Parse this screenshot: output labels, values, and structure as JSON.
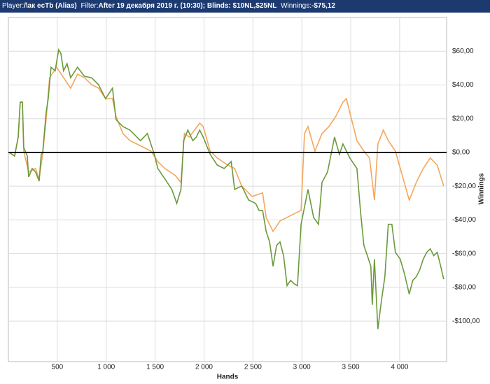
{
  "header": {
    "player_label": "Player:",
    "player": "/\\ак ecTb (Alias)",
    "filter_label": "Filter:",
    "filter": "After 19 декабря 2019 г. (10:30); Blinds: $10NL,$25NL",
    "winnings_label": "Winnings:",
    "winnings": "-$75,12"
  },
  "chart_data": {
    "type": "line",
    "xlabel": "Hands",
    "ylabel": "Winnings",
    "grid": true,
    "xlim": [
      0,
      4480
    ],
    "ylim": [
      -124,
      80
    ],
    "xticks": [
      500,
      {
        "value": 1000,
        "label": "1 000"
      },
      {
        "value": 1500,
        "label": "1 500"
      },
      {
        "value": 2000,
        "label": "2 000"
      },
      {
        "value": 2500,
        "label": "2 500"
      },
      {
        "value": 3000,
        "label": "3 000"
      },
      {
        "value": 3500,
        "label": "3 500"
      },
      {
        "value": 4000,
        "label": "4 000"
      }
    ],
    "yticks": [
      {
        "value": 60,
        "label": "$60,00"
      },
      {
        "value": 40,
        "label": "$40,00"
      },
      {
        "value": 20,
        "label": "$20,00"
      },
      {
        "value": 0,
        "label": "$0,00"
      },
      {
        "value": -20,
        "label": "-$20,00"
      },
      {
        "value": -40,
        "label": "-$40,00"
      },
      {
        "value": -60,
        "label": "-$60,00"
      },
      {
        "value": -80,
        "label": "-$80,00"
      },
      {
        "value": -100,
        "label": "-$100,00"
      }
    ],
    "series": [
      {
        "color": "#f4a75c",
        "x": [
          7,
          64,
          100,
          121,
          143,
          157,
          207,
          278,
          314,
          350,
          386,
          421,
          493,
          564,
          636,
          707,
          778,
          850,
          921,
          993,
          1064,
          1100,
          1171,
          1242,
          1314,
          1385,
          1456,
          1528,
          1600,
          1707,
          1764,
          1799,
          1849,
          1956,
          1992,
          2063,
          2135,
          2242,
          2313,
          2385,
          2492,
          2599,
          2635,
          2706,
          2777,
          2849,
          2920,
          2992,
          3027,
          3063,
          3134,
          3206,
          3277,
          3348,
          3420,
          3456,
          3491,
          3563,
          3634,
          3692,
          3742,
          3777,
          3834,
          3884,
          3956,
          4027,
          4098,
          4170,
          4241,
          4313,
          4384,
          4450
        ],
        "values": [
          0,
          -2.1,
          9.1,
          29.8,
          29.8,
          0.8,
          -11.6,
          -9.5,
          -15.7,
          -1.2,
          19.5,
          44.3,
          50.5,
          44.3,
          38.1,
          46.4,
          44.3,
          40.2,
          38.1,
          31.9,
          31.9,
          21.5,
          11.2,
          7.0,
          5.0,
          2.9,
          0.8,
          -5.4,
          -9.5,
          -13.7,
          -17.8,
          11.2,
          9.1,
          17.4,
          15.3,
          0.8,
          -3.3,
          -7.5,
          -9.5,
          -19.9,
          -26.1,
          -24,
          -38.5,
          -46.8,
          -40.6,
          -38.5,
          -36.4,
          -34.4,
          11.2,
          15.3,
          0.8,
          11.2,
          15.3,
          21.5,
          29.8,
          31.9,
          23.6,
          7.0,
          0.8,
          -3.3,
          -28.2,
          5.0,
          13.3,
          7.0,
          0.8,
          -13.7,
          -28.2,
          -17.8,
          -9.5,
          -3.3,
          -7.5,
          -19.9
        ]
      },
      {
        "color": "#6b9a3c",
        "x": [
          7,
          64,
          100,
          121,
          143,
          157,
          193,
          207,
          243,
          278,
          314,
          336,
          350,
          386,
          407,
          436,
          478,
          514,
          536,
          564,
          600,
          636,
          707,
          778,
          850,
          921,
          993,
          1064,
          1100,
          1171,
          1242,
          1278,
          1350,
          1421,
          1492,
          1528,
          1600,
          1671,
          1721,
          1764,
          1792,
          1835,
          1885,
          1921,
          1956,
          1992,
          2063,
          2135,
          2206,
          2278,
          2313,
          2385,
          2456,
          2528,
          2563,
          2599,
          2635,
          2670,
          2706,
          2742,
          2777,
          2813,
          2849,
          2885,
          2920,
          2956,
          2992,
          3063,
          3120,
          3170,
          3206,
          3263,
          3334,
          3384,
          3420,
          3491,
          3563,
          3599,
          3634,
          3670,
          3706,
          3720,
          3742,
          3777,
          3813,
          3849,
          3884,
          3920,
          3956,
          4006,
          4048,
          4098,
          4134,
          4170,
          4205,
          4241,
          4277,
          4313,
          4348,
          4384,
          4420,
          4450
        ],
        "values": [
          0,
          -2.1,
          9.1,
          29.8,
          29.8,
          2.9,
          -2.1,
          -14.5,
          -9.5,
          -11.6,
          -17,
          -1.2,
          -0.4,
          23.6,
          31.9,
          50.5,
          48.4,
          60.9,
          58.8,
          48.4,
          52.6,
          44.3,
          50.5,
          45.1,
          44.3,
          40.2,
          31.9,
          38.1,
          19.5,
          15.3,
          13.3,
          11.2,
          7.0,
          11.2,
          -1.2,
          -9.5,
          -15.7,
          -21.9,
          -30.2,
          -21.9,
          7.0,
          13.3,
          7.0,
          9.1,
          13.3,
          9.1,
          -1.2,
          -7.5,
          -9.5,
          -5.4,
          -21.9,
          -19.9,
          -28.2,
          -30.2,
          -34.4,
          -34.4,
          -46.8,
          -53,
          -67.5,
          -55.1,
          -53,
          -61.2,
          -79,
          -75.8,
          -77.8,
          -79,
          -42.6,
          -21.9,
          -38.5,
          -42.6,
          -17.8,
          -11.6,
          9.1,
          -1.2,
          5.0,
          -3.3,
          -9.5,
          -34.4,
          -55.1,
          -61.2,
          -67.5,
          -90.3,
          -63.3,
          -104.7,
          -88.2,
          -73.7,
          -42.6,
          -42.6,
          -59.2,
          -63.3,
          -71.6,
          -84,
          -75.8,
          -73.7,
          -69.6,
          -63.3,
          -59.2,
          -57.1,
          -61.2,
          -59.2,
          -67.5,
          -75.1
        ]
      }
    ]
  }
}
